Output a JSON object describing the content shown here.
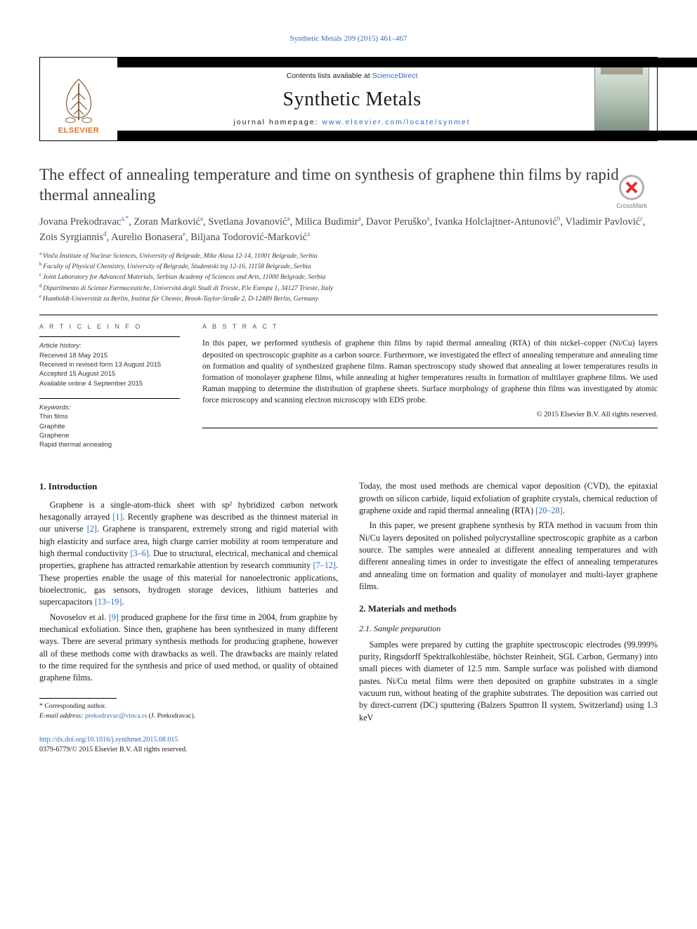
{
  "colors": {
    "link": "#2a6ebb",
    "elsevier_orange": "#e9711c",
    "text": "#1a1a1a",
    "muted": "#555555",
    "crossmark_red": "#d33333"
  },
  "top_journal_ref": "Synthetic Metals 209 (2015) 461–467",
  "header": {
    "contents_prefix": "Contents lists available at ",
    "contents_link": "ScienceDirect",
    "journal_title": "Synthetic Metals",
    "homepage_prefix": "journal homepage: ",
    "homepage_url": "www.elsevier.com/locate/synmet",
    "publisher_word": "ELSEVIER"
  },
  "crossmark_label": "CrossMark",
  "title": "The effect of annealing temperature and time on synthesis of graphene thin films by rapid thermal annealing",
  "authors_html": "Jovana Prekodravac",
  "authors": [
    {
      "name": "Jovana Prekodravac",
      "sup": "a,*"
    },
    {
      "name": "Zoran Marković",
      "sup": "a"
    },
    {
      "name": "Svetlana Jovanović",
      "sup": "a"
    },
    {
      "name": "Milica Budimir",
      "sup": "a"
    },
    {
      "name": "Davor Peruško",
      "sup": "a"
    },
    {
      "name": "Ivanka Holclajtner-Antunović",
      "sup": "b"
    },
    {
      "name": "Vladimir Pavlović",
      "sup": "c"
    },
    {
      "name": "Zois Syrgiannis",
      "sup": "d"
    },
    {
      "name": "Aurelio Bonasera",
      "sup": "e"
    },
    {
      "name": "Biljana Todorović-Marković",
      "sup": "a"
    }
  ],
  "affiliations": [
    {
      "key": "a",
      "text": "Vinča Institute of Nuclear Sciences, University of Belgrade, Mike Alasa 12-14, 11001 Belgrade, Serbia"
    },
    {
      "key": "b",
      "text": "Faculty of Physical Chemistry, University of Belgrade, Studentski trg 12-16, 11158 Belgrade, Serbia"
    },
    {
      "key": "c",
      "text": "Joint Laboratory for Advanced Materials, Serbian Academy of Sciences and Arts, 11000 Belgrade, Serbia"
    },
    {
      "key": "d",
      "text": "Dipartimento di Scienze Farmaceutiche, Università degli Studi di Trieste, P.le Europa 1, 34127 Trieste, Italy"
    },
    {
      "key": "e",
      "text": "Humboldt-Universität zu Berlin, Institut für Chemie, Brook-Taylor-Straße 2, D-12489 Berlin, Germany"
    }
  ],
  "article_info": {
    "head": "A R T I C L E   I N F O",
    "history_label": "Article history:",
    "received": "Received 18 May 2015",
    "revised": "Received in revised form 13 August 2015",
    "accepted": "Accepted 15 August 2015",
    "online": "Available online 4 September 2015",
    "keywords_label": "Keywords:",
    "keywords": [
      "Thin films",
      "Graphite",
      "Graphene",
      "Rapid thermal annealing"
    ]
  },
  "abstract": {
    "head": "A B S T R A C T",
    "text": "In this paper, we performed synthesis of graphene thin films by rapid thermal annealing (RTA) of thin nickel–copper (Ni/Cu) layers deposited on spectroscopic graphite as a carbon source. Furthermore, we investigated the effect of annealing temperature and annealing time on formation and quality of synthesized graphene films. Raman spectroscopy study showed that annealing at lower temperatures results in formation of monolayer graphene films, while annealing at higher temperatures results in formation of multilayer graphene films. We used Raman mapping to determine the distribution of graphene sheets. Surface morphology of graphene thin films was investigated by atomic force microscopy and scanning electron microscopy with EDS probe.",
    "copyright": "© 2015 Elsevier B.V. All rights reserved."
  },
  "body": {
    "intro_head": "1. Introduction",
    "intro_p1": "Graphene is a single-atom-thick sheet with sp² hybridized carbon network hexagonally arrayed [1]. Recently graphene was described as the thinnest material in our universe [2]. Graphene is transparent, extremely strong and rigid material with high elasticity and surface area, high charge carrier mobility at room temperature and high thermal conductivity [3–6]. Due to structural, electrical, mechanical and chemical properties, graphene has attracted remarkable attention by research community [7–12]. These properties enable the usage of this material for nanoelectronic applications, bioelectronic, gas sensors, hydrogen storage devices, lithium batteries and supercapacitors [13–19].",
    "intro_p2": "Novoselov et al. [9] produced graphene for the first time in 2004, from graphite by mechanical exfoliation. Since then, graphene has been synthesized in many different ways. There are several primary synthesis methods for producing graphene, however all of these methods come with drawbacks as well. The drawbacks are mainly related to the time required for the synthesis and price of used method, or quality of obtained graphene films.",
    "col2_p1": "Today, the most used methods are chemical vapor deposition (CVD), the epitaxial growth on silicon carbide, liquid exfoliation of graphite crystals, chemical reduction of graphene oxide and rapid thermal annealing (RTA) [20–28].",
    "col2_p2": "In this paper, we present graphene synthesis by RTA method in vacuum from thin Ni/Cu layers deposited on polished polycrystalline spectroscopic graphite as a carbon source. The samples were annealed at different annealing temperatures and with different annealing times in order to investigate the effect of annealing temperatures and annealing time on formation and quality of monolayer and multi-layer graphene films.",
    "mm_head": "2. Materials and methods",
    "sp_head": "2.1. Sample preparation",
    "sp_p1": "Samples were prepared by cutting the graphite spectroscopic electrodes (99.999% purity, Ringsdorff Spektralkohlestäbe, höchster Reinheit, SGL Carbon, Germany) into small pieces with diameter of 12.5 mm. Sample surface was polished with diamond pastes. Ni/Cu metal films were then deposited on graphite substrates in a single vacuum run, without heating of the graphite substrates. The deposition was carried out by direct-current (DC) sputtering (Balzers Sputtron II system, Switzerland) using 1.3 keV"
  },
  "footnote": {
    "corr": "* Corresponding author.",
    "email_label": "E-mail address: ",
    "email": "prekodravac@vinca.rs",
    "email_who": " (J. Prekodravac)."
  },
  "doi": {
    "url": "http://dx.doi.org/10.1016/j.synthmet.2015.08.015",
    "issn_line": "0379-6779/© 2015 Elsevier B.V. All rights reserved."
  },
  "citation_refs": [
    "[1]",
    "[2]",
    "[3–6]",
    "[7–12]",
    "[13–19]",
    "[9]",
    "[20–28]"
  ]
}
